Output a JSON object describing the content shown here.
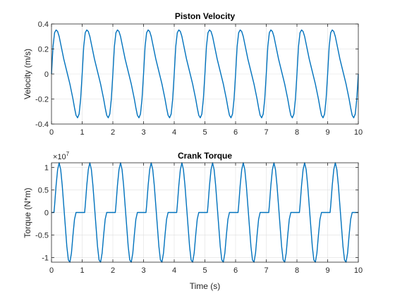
{
  "figure": {
    "background": "#ffffff",
    "line_color": "#0072bd",
    "grid_color": "#dfdfdf"
  },
  "chart_data": [
    {
      "type": "line",
      "title": "Piston Velocity",
      "xlabel": "",
      "ylabel": "Velocity (m/s)",
      "xlim": [
        0,
        10
      ],
      "ylim": [
        -0.4,
        0.4
      ],
      "grid": true,
      "x_ticks": [
        0,
        1,
        2,
        3,
        4,
        5,
        6,
        7,
        8,
        9,
        10
      ],
      "x_tick_labels": [
        "0",
        "1",
        "2",
        "3",
        "4",
        "5",
        "6",
        "7",
        "8",
        "9",
        "10"
      ],
      "y_ticks": [
        -0.4,
        -0.2,
        0,
        0.2,
        0.4
      ],
      "y_tick_labels": [
        "-0.4",
        "-0.2",
        "0",
        "0.2",
        "0.4"
      ],
      "exponent_label": "",
      "series": [
        {
          "x": [
            0,
            0.05,
            0.1,
            0.15,
            0.2,
            0.25,
            0.3,
            0.4,
            0.5,
            0.6,
            0.7,
            0.75,
            0.8,
            0.85,
            0.9,
            0.95,
            1.0
          ],
          "y": [
            0,
            0.22,
            0.33,
            0.352,
            0.34,
            0.3,
            0.24,
            0.12,
            0.02,
            -0.08,
            -0.2,
            -0.27,
            -0.33,
            -0.35,
            -0.32,
            -0.2,
            0
          ],
          "period": 1,
          "x_end": 10
        }
      ]
    },
    {
      "type": "line",
      "title": "Crank Torque",
      "xlabel": "Time (s)",
      "ylabel": "Torque (N*m)",
      "xlim": [
        0,
        10
      ],
      "ylim": [
        -11000000,
        11000000
      ],
      "grid": true,
      "x_ticks": [
        0,
        1,
        2,
        3,
        4,
        5,
        6,
        7,
        8,
        9,
        10
      ],
      "x_tick_labels": [
        "0",
        "1",
        "2",
        "3",
        "4",
        "5",
        "6",
        "7",
        "8",
        "9",
        "10"
      ],
      "y_ticks": [
        -10000000,
        -5000000,
        0,
        5000000,
        10000000
      ],
      "y_tick_labels": [
        "-1",
        "-0.5",
        "0",
        "0.5",
        "1"
      ],
      "exponent_label": "×10",
      "exponent_power": "7",
      "series": [
        {
          "x": [
            0,
            0.08,
            0.1,
            0.15,
            0.2,
            0.25,
            0.3,
            0.35,
            0.4,
            0.45,
            0.5,
            0.55,
            0.6,
            0.65,
            0.7,
            0.75,
            0.8,
            0.85,
            0.9,
            0.95,
            1.0
          ],
          "y": [
            0,
            0,
            1500000,
            6000000,
            9500000,
            11000000,
            9500000,
            6000000,
            1500000,
            -3000000,
            -7500000,
            -10500000,
            -11000000,
            -9000000,
            -5000000,
            -1500000,
            0,
            0,
            0,
            0,
            0
          ],
          "period": 1,
          "x_end": 10
        }
      ]
    }
  ]
}
